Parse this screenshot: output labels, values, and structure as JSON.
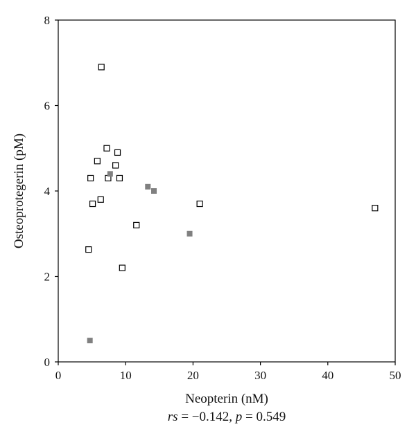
{
  "chart_data": {
    "type": "scatter",
    "title": "",
    "xlabel": "Neopterin (nM)",
    "ylabel": "Osteoprotegerin (pM)",
    "xlim": [
      0,
      50
    ],
    "ylim": [
      0,
      8
    ],
    "x_ticks": [
      "0",
      "10",
      "20",
      "30",
      "40",
      "50"
    ],
    "y_ticks": [
      "0",
      "2",
      "4",
      "6",
      "8"
    ],
    "grid": false,
    "legend": "none",
    "annotation": {
      "rs_label": "rs",
      "rs_value": " = −0.142, ",
      "p_label": "p",
      "p_value": " = 0.549"
    },
    "series": [
      {
        "marker": "open-square",
        "color": "#000000",
        "points": [
          [
            6.4,
            6.9
          ],
          [
            7.2,
            5.0
          ],
          [
            8.8,
            4.9
          ],
          [
            5.8,
            4.7
          ],
          [
            8.5,
            4.6
          ],
          [
            4.8,
            4.3
          ],
          [
            7.4,
            4.3
          ],
          [
            9.1,
            4.3
          ],
          [
            6.3,
            3.8
          ],
          [
            5.1,
            3.7
          ],
          [
            21.0,
            3.7
          ],
          [
            47.0,
            3.6
          ],
          [
            11.6,
            3.2
          ],
          [
            4.5,
            2.63
          ],
          [
            9.5,
            2.2
          ]
        ]
      },
      {
        "marker": "filled-square",
        "color": "#808080",
        "points": [
          [
            7.7,
            4.4
          ],
          [
            13.3,
            4.1
          ],
          [
            14.2,
            4.0
          ],
          [
            19.5,
            3.0
          ],
          [
            4.7,
            0.5
          ]
        ]
      }
    ]
  }
}
